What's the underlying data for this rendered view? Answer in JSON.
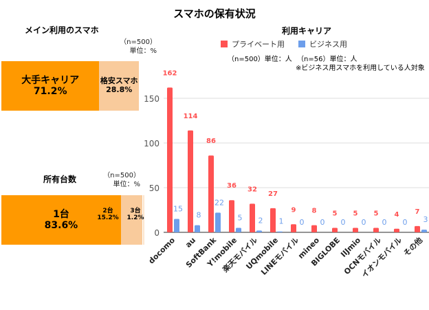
{
  "title": "スマホの保有状況",
  "main_phone": {
    "title": "メイン利用のスマホ",
    "n": "（n=500）",
    "unit": "単位：%",
    "segments": [
      {
        "label": "大手キャリア",
        "value": "71.2%",
        "pct": 71.2,
        "color": "#FF9900"
      },
      {
        "label": "格安スマホ",
        "value": "28.8%",
        "pct": 28.8,
        "color": "#F9CB9C"
      }
    ]
  },
  "devices": {
    "title": "所有台数",
    "n": "（n=500）",
    "unit": "単位：%",
    "segments": [
      {
        "label": "1台",
        "value": "83.6%",
        "pct": 83.6,
        "color": "#FF9900"
      },
      {
        "label": "2台",
        "value": "15.2%",
        "pct": 15.2,
        "color": "#F9CB9C"
      },
      {
        "label": "3台",
        "value": "1.2%",
        "pct": 1.2,
        "color": "#FCE5CD"
      }
    ]
  },
  "chart_data": {
    "type": "bar",
    "title": "利用キャリア",
    "notes": [
      "（n=500）単位：人",
      "（n=56）単位：人",
      "※ビジネス用スマホを利用している人対象"
    ],
    "legend_position": "top",
    "grid": true,
    "ylim": [
      0,
      175
    ],
    "yticks": [
      0,
      50,
      100,
      150
    ],
    "categories": [
      "docomo",
      "au",
      "SoftBank",
      "Y!mobile",
      "楽天モバイル",
      "UQmobile",
      "LINEモバイル",
      "mineo",
      "BIGLOBE",
      "IIJmio",
      "OCNモバイル",
      "イオンモバイル",
      "その他"
    ],
    "series": [
      {
        "name": "プライベート用",
        "color": "#FF5252",
        "values": [
          162,
          114,
          86,
          36,
          32,
          27,
          9,
          8,
          5,
          5,
          5,
          4,
          7
        ]
      },
      {
        "name": "ビジネス用",
        "color": "#6D9EEB",
        "values": [
          15,
          8,
          22,
          5,
          2,
          1,
          0,
          0,
          0,
          0,
          0,
          0,
          3
        ]
      }
    ]
  }
}
